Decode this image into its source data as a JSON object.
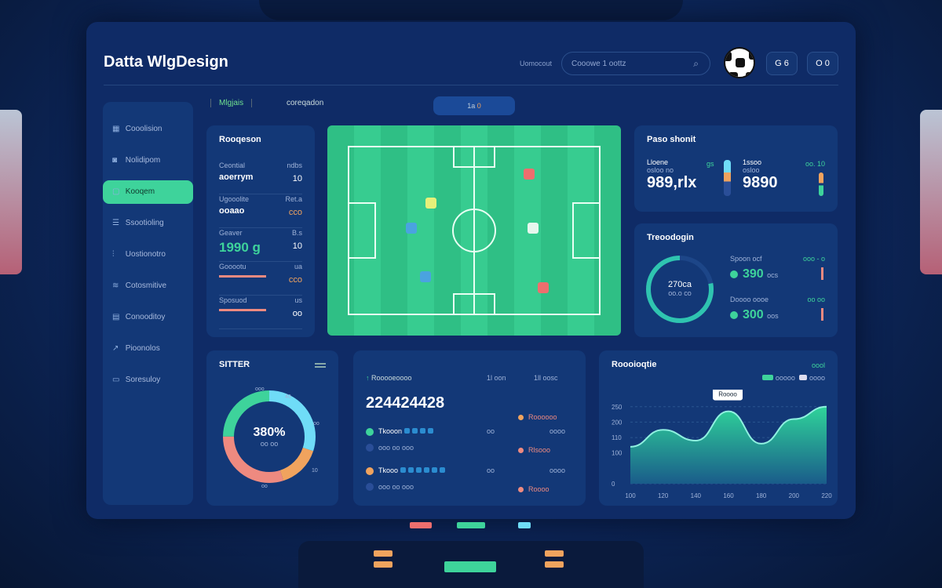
{
  "header": {
    "title": "Datta WlgDesign",
    "search_label": "Uomocout",
    "search_placeholder": "Cooowe 1 oottz",
    "btn1": "G 6",
    "btn2": "O 0"
  },
  "tabs": {
    "tab1": "Mlgjais",
    "tab2": "coreqadon",
    "pill": "1a",
    "pill_count": "0"
  },
  "sidebar": {
    "items": [
      {
        "label": "Cooolision",
        "icon": "chart-icon"
      },
      {
        "label": "Nolidipom",
        "icon": "robot-icon"
      },
      {
        "label": "Kooqem",
        "icon": "chat-icon",
        "active": true
      },
      {
        "label": "Ssootioling",
        "icon": "inbox-icon"
      },
      {
        "label": "Uostionotro",
        "icon": "stats-icon"
      },
      {
        "label": "Cotosmitive",
        "icon": "layers-icon"
      },
      {
        "label": "Conooditoy",
        "icon": "folder-icon"
      },
      {
        "label": "Pioonolos",
        "icon": "graph-icon"
      },
      {
        "label": "Soresuloy",
        "icon": "card-icon"
      }
    ]
  },
  "stats_card": {
    "title": "Rooqeson",
    "rows": [
      {
        "label": "Ceontial",
        "value": "aoerrym",
        "right_label": "ndbs",
        "right_value": "10"
      },
      {
        "label": "Ugooolite",
        "value": "ooaao",
        "right_label": "Ret.a",
        "right_value": "cco"
      },
      {
        "label": "Geaver",
        "value": "1990 g",
        "right_label": "B.s",
        "right_value": "10"
      },
      {
        "label": "Gooootu",
        "value": "",
        "right_label": "ua",
        "right_value": "cco"
      },
      {
        "label": "Sposuod",
        "value": "",
        "right_label": "us",
        "right_value": "oo"
      }
    ]
  },
  "colors": {
    "accent": "#3ed39b",
    "cyan": "#6fdcf7",
    "orange": "#f0a35e",
    "salmon": "#ee8a80",
    "panel": "#133877",
    "bg": "#0f2b66"
  },
  "pass_card": {
    "title": "Paso shonit",
    "left_label": "Lloene",
    "left_sub": "osloo no",
    "left_value": "989,rlx",
    "left_tag": "gs",
    "right_label": "1ssoo",
    "right_sub": "osloo",
    "right_value": "9890",
    "right_tag": "oo. 10"
  },
  "trend_card": {
    "title": "Treoodogin",
    "ring_value": "270ca",
    "ring_sub": "oo.o co",
    "progress": 0.78,
    "items": [
      {
        "label": "Spoon ocf",
        "value": "390",
        "unit": "ocs",
        "tag": "ooo - o"
      },
      {
        "label": "Doooo oooe",
        "value": "300",
        "unit": "oos",
        "tag": "oo oo"
      }
    ]
  },
  "donut_card": {
    "title": "SITTER",
    "center": "380%",
    "sub": "oo oo",
    "labels": [
      "ooo",
      "40",
      "oo",
      "10",
      "oo"
    ],
    "chart_data": {
      "type": "pie",
      "values": [
        30,
        15,
        30,
        25
      ],
      "colors": [
        "#6fdcf7",
        "#f0a35e",
        "#ee8a80",
        "#3ed39b"
      ]
    }
  },
  "list_card": {
    "header": "Rooooeoooo",
    "col1": "1l oon",
    "col2": "1ll oosc",
    "total": "224424428",
    "rows": [
      {
        "name": "Tkooon",
        "sub": "ooo oo ooo",
        "c1": "oo",
        "c2": "oooo",
        "status": "Rlsooo",
        "color": "#3ed39b",
        "bars": 4
      },
      {
        "name": "Tkooo",
        "sub": "ooo oo ooo",
        "c1": "oo",
        "c2": "oooo",
        "status": "Roooo",
        "color": "#f0a35e",
        "bars": 6
      }
    ],
    "top_status": "Roooooo"
  },
  "area_card": {
    "title": "Roooioqtie",
    "legend_top": "oool",
    "legend": [
      "ooooo",
      "oooo"
    ],
    "tooltip": "Roooo",
    "chart_data": {
      "type": "area",
      "x": [
        "100",
        "120",
        "140",
        "160",
        "180",
        "200",
        "220"
      ],
      "y": [
        120,
        175,
        140,
        235,
        130,
        210,
        250
      ],
      "yticks": [
        "0",
        "100",
        "110",
        "200",
        "250"
      ],
      "ylim": [
        0,
        280
      ],
      "grid": true
    }
  }
}
